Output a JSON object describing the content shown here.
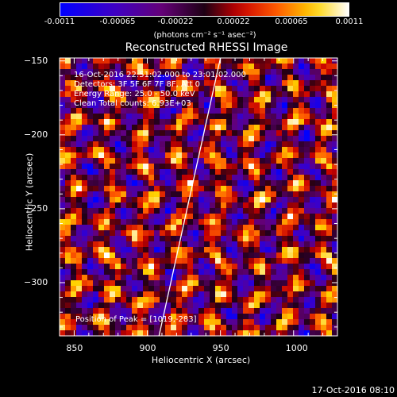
{
  "colorbar": {
    "ticks": [
      "-0.0011",
      "-0.00065",
      "-0.00022",
      "0.00022",
      "0.00065",
      "0.0011"
    ],
    "units": "(photons cm⁻² s⁻¹ asec⁻²)"
  },
  "chart_data": {
    "type": "heatmap",
    "title": "Reconstructed RHESSI Image",
    "xlabel": "Heliocentric X (arcsec)",
    "ylabel": "Heliocentric Y (arcsec)",
    "xlim": [
      840,
      1030
    ],
    "ylim": [
      -336,
      -148
    ],
    "xticks": [
      850,
      900,
      950,
      1000
    ],
    "yticks": [
      -150,
      -200,
      -250,
      -300
    ],
    "color_range": [
      -0.0011,
      0.0011
    ],
    "limb_line": [
      [
        908,
        -336
      ],
      [
        950,
        -148
      ]
    ],
    "annotations": [
      "16-Oct-2016 22:51:02.000 to 23:01:02.000",
      "Detectors: 3F 5F 6F 7F 8F, Att 0",
      "Energy Range: 25.0 - 50.0 keV",
      "Clean    Total counts: 6.93E+03"
    ],
    "peak_label": "Position of Peak = [1019,-283]"
  },
  "footer": "17-Oct-2016 08:10"
}
